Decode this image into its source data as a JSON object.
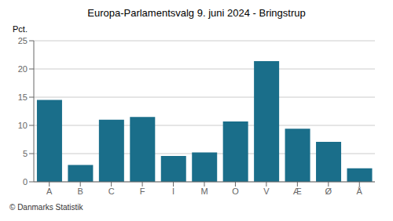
{
  "chart_data": {
    "type": "bar",
    "title": "Europa-Parlamentsvalg 9. juni 2024 - Bringstrup",
    "ylabel": "Pct.",
    "footer": "© Danmarks Statistik",
    "categories": [
      "A",
      "B",
      "C",
      "F",
      "I",
      "M",
      "O",
      "V",
      "Æ",
      "Ø",
      "Å"
    ],
    "values": [
      14.5,
      3.0,
      11.0,
      11.5,
      4.6,
      5.2,
      10.7,
      21.4,
      9.4,
      7.1,
      2.4
    ],
    "color": "#1a6e8a",
    "ylim": [
      0,
      25
    ],
    "yticks": [
      0,
      5,
      10,
      15,
      20,
      25
    ],
    "grid": true
  }
}
